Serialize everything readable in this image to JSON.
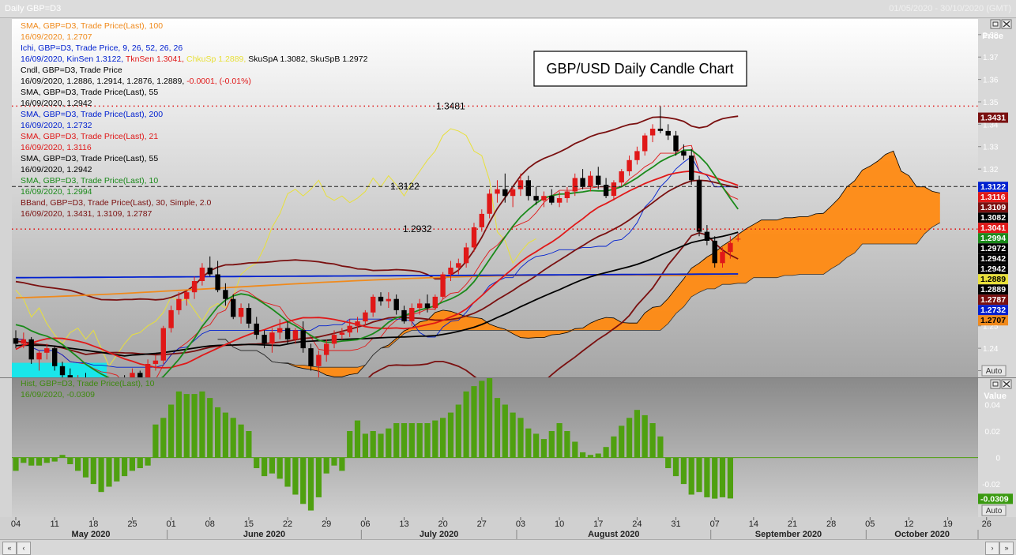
{
  "window": {
    "title": "Daily GBP=D3",
    "date_range": "01/05/2020 - 30/10/2020 (GMT)"
  },
  "chart_title": "GBP/USD Daily Candle Chart",
  "colors": {
    "sma100": "#f08a1c",
    "ichi": "#0020d0",
    "tenkan": "#e01818",
    "chikou": "#e8e03a",
    "candle_text": "#000000",
    "sma55": "#000000",
    "sma200": "#0020d0",
    "sma21": "#e01818",
    "sma10": "#1a8a1a",
    "bband": "#7a1010",
    "cloud_bear": "#ff8a12",
    "cloud_bull": "#19e6ea",
    "hist": "#4fa010",
    "up": "#e01818",
    "down": "#000000"
  },
  "legend": [
    {
      "header": "SMA, GBP=D3, Trade Price(Last),  100",
      "values": "16/09/2020, 1.2707",
      "color": "#f08a1c"
    },
    {
      "header": "Ichi, GBP=D3, Trade Price,  9, 26, 52, 26, 26",
      "values_parts": [
        {
          "t": "16/09/2020, KinSen 1.3122, ",
          "c": "#0020d0"
        },
        {
          "t": "TknSen 1.3041, ",
          "c": "#e01818"
        },
        {
          "t": "ChkuSp 1.2889, ",
          "c": "#e8e03a"
        },
        {
          "t": "SkuSpA 1.3082, SkuSpB 1.2972",
          "c": "#000000"
        }
      ],
      "color": "#0020d0"
    },
    {
      "header": "Cndl, GBP=D3, Trade Price",
      "values_parts": [
        {
          "t": "16/09/2020, 1.2886, 1.2914, 1.2876, 1.2889, ",
          "c": "#000000"
        },
        {
          "t": "-0.0001, (-0.01%)",
          "c": "#e01818"
        }
      ],
      "color": "#000000"
    },
    {
      "header": "SMA, GBP=D3, Trade Price(Last),  55",
      "values": "16/09/2020, 1.2942",
      "color": "#000000"
    },
    {
      "header": "SMA, GBP=D3, Trade Price(Last),  200",
      "values": "16/09/2020, 1.2732",
      "color": "#0020d0"
    },
    {
      "header": "SMA, GBP=D3, Trade Price(Last),  21",
      "values": "16/09/2020, 1.3116",
      "color": "#e01818"
    },
    {
      "header": "SMA, GBP=D3, Trade Price(Last),  55",
      "values": "16/09/2020, 1.2942",
      "color": "#000000"
    },
    {
      "header": "SMA, GBP=D3, Trade Price(Last),  10",
      "values": "16/09/2020, 1.2994",
      "color": "#1a8a1a"
    },
    {
      "header": "BBand, GBP=D3, Trade Price(Last),  30, Simple, 2.0",
      "values": "16/09/2020, 1.3431, 1.3109, 1.2787",
      "color": "#7a1010"
    }
  ],
  "lower_legend": {
    "header": "Hist, GBP=D3, Trade Price(Last), 10",
    "values": "16/09/2020, -0.0309"
  },
  "h_levels": [
    {
      "value": 1.3481,
      "label": "1.3481",
      "style": "red-dotted"
    },
    {
      "value": 1.3122,
      "label": "1.3122",
      "style": "black-dashed"
    },
    {
      "value": 1.2932,
      "label": "1.2932",
      "style": "red-dotted"
    }
  ],
  "price_axis": {
    "title": "Price",
    "ticks": [
      "1.38",
      "1.37",
      "1.36",
      "1.35",
      "1.34",
      "1.33",
      "1.32",
      "1.31",
      "1.30",
      "1.29",
      "1.28",
      "1.27",
      "1.26",
      "1.25",
      "1.24",
      "1.23"
    ],
    "auto_label": "Auto"
  },
  "price_tags": [
    {
      "text": "1.3431",
      "value": 1.3431,
      "bg": "#7a1010",
      "fg": "#ffffff"
    },
    {
      "text": "1.3122",
      "value": 1.3122,
      "bg": "#0020d0",
      "fg": "#ffffff"
    },
    {
      "text": "1.3116",
      "value": 1.3116,
      "bg": "#e01818",
      "fg": "#ffffff"
    },
    {
      "text": "1.3109",
      "value": 1.3109,
      "bg": "#7a1010",
      "fg": "#ffffff"
    },
    {
      "text": "1.3082",
      "value": 1.3082,
      "bg": "#000000",
      "fg": "#ffffff"
    },
    {
      "text": "1.3041",
      "value": 1.3041,
      "bg": "#e01818",
      "fg": "#ffffff"
    },
    {
      "text": "1.2994",
      "value": 1.2994,
      "bg": "#1a8a1a",
      "fg": "#ffffff"
    },
    {
      "text": "1.2972",
      "value": 1.2972,
      "bg": "#000000",
      "fg": "#ffffff"
    },
    {
      "text": "1.2942",
      "value": 1.2942,
      "bg": "#000000",
      "fg": "#ffffff"
    },
    {
      "text": "1.2942",
      "value": 1.2942,
      "bg": "#000000",
      "fg": "#ffffff"
    },
    {
      "text": "1.2889",
      "value": 1.2889,
      "bg": "#e8e03a",
      "fg": "#000000"
    },
    {
      "text": "1.2889",
      "value": 1.2889,
      "bg": "#000000",
      "fg": "#ffffff"
    },
    {
      "text": "1.2787",
      "value": 1.2787,
      "bg": "#7a1010",
      "fg": "#ffffff"
    },
    {
      "text": "1.2732",
      "value": 1.2732,
      "bg": "#0020d0",
      "fg": "#ffffff"
    },
    {
      "text": "1.2707",
      "value": 1.2707,
      "bg": "#f08a1c",
      "fg": "#000000"
    }
  ],
  "lower_axis": {
    "title": "Value",
    "ticks": [
      "0.04",
      "0.02",
      "0",
      "-0.02"
    ],
    "tag": "-0.0309",
    "auto_label": "Auto"
  },
  "date_axis": {
    "days": [
      "04",
      "11",
      "18",
      "25",
      "01",
      "08",
      "15",
      "22",
      "29",
      "06",
      "13",
      "20",
      "27",
      "03",
      "10",
      "17",
      "24",
      "31",
      "07",
      "14",
      "21",
      "28",
      "05",
      "12",
      "19",
      "26"
    ],
    "months": [
      "May 2020",
      "June 2020",
      "July 2020",
      "August 2020",
      "September 2020",
      "October 2020"
    ]
  },
  "chart_data": [
    {
      "type": "candlestick",
      "title": "GBP/USD Daily Candle Chart",
      "x_start": "2020-05-04",
      "y_range": [
        1.227,
        1.387
      ],
      "candles": [
        [
          1.2445,
          1.248,
          1.24,
          1.242
        ],
        [
          1.242,
          1.247,
          1.24,
          1.244
        ],
        [
          1.244,
          1.245,
          1.233,
          1.235
        ],
        [
          1.235,
          1.239,
          1.23,
          1.238
        ],
        [
          1.238,
          1.242,
          1.235,
          1.24
        ],
        [
          1.24,
          1.241,
          1.23,
          1.232
        ],
        [
          1.232,
          1.234,
          1.226,
          1.228
        ],
        [
          1.228,
          1.231,
          1.22,
          1.222
        ],
        [
          1.222,
          1.228,
          1.219,
          1.225
        ],
        [
          1.225,
          1.229,
          1.22,
          1.223
        ],
        [
          1.223,
          1.227,
          1.217,
          1.219
        ],
        [
          1.219,
          1.225,
          1.217,
          1.223
        ],
        [
          1.223,
          1.225,
          1.216,
          1.218
        ],
        [
          1.218,
          1.226,
          1.215,
          1.224
        ],
        [
          1.224,
          1.228,
          1.219,
          1.222
        ],
        [
          1.222,
          1.231,
          1.219,
          1.229
        ],
        [
          1.229,
          1.23,
          1.22,
          1.222
        ],
        [
          1.222,
          1.235,
          1.22,
          1.233
        ],
        [
          1.233,
          1.237,
          1.23,
          1.2345
        ],
        [
          1.2345,
          1.25,
          1.233,
          1.249
        ],
        [
          1.249,
          1.259,
          1.247,
          1.257
        ],
        [
          1.257,
          1.265,
          1.255,
          1.262
        ],
        [
          1.262,
          1.266,
          1.259,
          1.265
        ],
        [
          1.265,
          1.272,
          1.262,
          1.27
        ],
        [
          1.27,
          1.278,
          1.268,
          1.276
        ],
        [
          1.276,
          1.281,
          1.272,
          1.273
        ],
        [
          1.273,
          1.279,
          1.265,
          1.266
        ],
        [
          1.266,
          1.269,
          1.259,
          1.262
        ],
        [
          1.262,
          1.264,
          1.253,
          1.254
        ],
        [
          1.254,
          1.26,
          1.251,
          1.258
        ],
        [
          1.258,
          1.26,
          1.249,
          1.251
        ],
        [
          1.251,
          1.254,
          1.244,
          1.246
        ],
        [
          1.246,
          1.248,
          1.24,
          1.242
        ],
        [
          1.242,
          1.249,
          1.238,
          1.247
        ],
        [
          1.247,
          1.253,
          1.244,
          1.249
        ],
        [
          1.249,
          1.252,
          1.242,
          1.244
        ],
        [
          1.244,
          1.249,
          1.242,
          1.248
        ],
        [
          1.248,
          1.252,
          1.238,
          1.24
        ],
        [
          1.24,
          1.242,
          1.23,
          1.232
        ],
        [
          1.232,
          1.239,
          1.225,
          1.237
        ],
        [
          1.237,
          1.244,
          1.234,
          1.242
        ],
        [
          1.242,
          1.248,
          1.24,
          1.246
        ],
        [
          1.246,
          1.249,
          1.244,
          1.247
        ],
        [
          1.247,
          1.253,
          1.245,
          1.25
        ],
        [
          1.25,
          1.254,
          1.247,
          1.252
        ],
        [
          1.252,
          1.257,
          1.25,
          1.256
        ],
        [
          1.256,
          1.264,
          1.254,
          1.263
        ],
        [
          1.263,
          1.265,
          1.259,
          1.261
        ],
        [
          1.261,
          1.265,
          1.258,
          1.262
        ],
        [
          1.262,
          1.264,
          1.255,
          1.257
        ],
        [
          1.257,
          1.259,
          1.251,
          1.252
        ],
        [
          1.252,
          1.26,
          1.25,
          1.258
        ],
        [
          1.258,
          1.262,
          1.255,
          1.26
        ],
        [
          1.26,
          1.264,
          1.256,
          1.258
        ],
        [
          1.258,
          1.264,
          1.257,
          1.263
        ],
        [
          1.263,
          1.274,
          1.262,
          1.273
        ],
        [
          1.273,
          1.279,
          1.27,
          1.276
        ],
        [
          1.276,
          1.28,
          1.273,
          1.278
        ],
        [
          1.278,
          1.287,
          1.276,
          1.285
        ],
        [
          1.285,
          1.296,
          1.283,
          1.294
        ],
        [
          1.294,
          1.302,
          1.292,
          1.3
        ],
        [
          1.3,
          1.311,
          1.298,
          1.309
        ],
        [
          1.309,
          1.315,
          1.305,
          1.311
        ],
        [
          1.311,
          1.318,
          1.305,
          1.308
        ],
        [
          1.308,
          1.312,
          1.303,
          1.311
        ],
        [
          1.311,
          1.318,
          1.308,
          1.315
        ],
        [
          1.315,
          1.317,
          1.306,
          1.308
        ],
        [
          1.308,
          1.312,
          1.304,
          1.306
        ],
        [
          1.306,
          1.31,
          1.303,
          1.308
        ],
        [
          1.308,
          1.311,
          1.304,
          1.305
        ],
        [
          1.305,
          1.31,
          1.303,
          1.307
        ],
        [
          1.307,
          1.312,
          1.305,
          1.31
        ],
        [
          1.31,
          1.318,
          1.308,
          1.316
        ],
        [
          1.316,
          1.32,
          1.311,
          1.312
        ],
        [
          1.312,
          1.319,
          1.31,
          1.317
        ],
        [
          1.317,
          1.321,
          1.311,
          1.313
        ],
        [
          1.313,
          1.316,
          1.307,
          1.308
        ],
        [
          1.308,
          1.315,
          1.306,
          1.314
        ],
        [
          1.314,
          1.32,
          1.312,
          1.319
        ],
        [
          1.319,
          1.326,
          1.317,
          1.324
        ],
        [
          1.324,
          1.33,
          1.322,
          1.328
        ],
        [
          1.328,
          1.336,
          1.326,
          1.335
        ],
        [
          1.335,
          1.34,
          1.332,
          1.338
        ],
        [
          1.338,
          1.3481,
          1.336,
          1.337
        ],
        [
          1.337,
          1.34,
          1.333,
          1.335
        ],
        [
          1.335,
          1.337,
          1.326,
          1.328
        ],
        [
          1.328,
          1.331,
          1.324,
          1.326
        ],
        [
          1.326,
          1.329,
          1.313,
          1.315
        ],
        [
          1.315,
          1.317,
          1.29,
          1.292
        ],
        [
          1.292,
          1.295,
          1.286,
          1.288
        ],
        [
          1.288,
          1.29,
          1.276,
          1.278
        ],
        [
          1.278,
          1.285,
          1.276,
          1.283
        ],
        [
          1.283,
          1.29,
          1.28,
          1.287
        ],
        [
          1.2886,
          1.2914,
          1.2876,
          1.2889
        ]
      ],
      "overlays": [
        {
          "name": "SMA 100",
          "color": "#f08a1c"
        },
        {
          "name": "SMA 200",
          "color": "#0020d0"
        },
        {
          "name": "SMA 55",
          "color": "#000000"
        },
        {
          "name": "SMA 21",
          "color": "#e01818"
        },
        {
          "name": "SMA 10",
          "color": "#1a8a1a"
        },
        {
          "name": "BBand 30, 2.0",
          "color": "#7a1010"
        },
        {
          "name": "Ichimoku cloud",
          "color": "#ff8a12"
        }
      ]
    },
    {
      "type": "bar",
      "title": "Histogram",
      "ylim": [
        -0.045,
        0.06
      ],
      "values": [
        -0.01,
        -0.004,
        -0.006,
        -0.006,
        -0.004,
        -0.003,
        0.002,
        -0.005,
        -0.01,
        -0.015,
        -0.02,
        -0.026,
        -0.022,
        -0.018,
        -0.014,
        -0.01,
        -0.008,
        -0.006,
        0.025,
        0.03,
        0.04,
        0.05,
        0.048,
        0.048,
        0.05,
        0.045,
        0.038,
        0.034,
        0.03,
        0.025,
        0.02,
        -0.008,
        -0.014,
        -0.012,
        -0.016,
        -0.022,
        -0.028,
        -0.035,
        -0.04,
        -0.03,
        -0.012,
        -0.006,
        -0.01,
        0.02,
        0.028,
        0.018,
        0.02,
        0.018,
        0.022,
        0.026,
        0.026,
        0.026,
        0.026,
        0.026,
        0.028,
        0.03,
        0.034,
        0.04,
        0.05,
        0.054,
        0.058,
        0.06,
        0.045,
        0.04,
        0.034,
        0.03,
        0.022,
        0.018,
        0.014,
        0.02,
        0.026,
        0.02,
        0.012,
        0.004,
        0.002,
        0.003,
        0.008,
        0.016,
        0.024,
        0.03,
        0.036,
        0.032,
        0.026,
        0.016,
        -0.008,
        -0.014,
        -0.02,
        -0.028,
        -0.026,
        -0.03,
        -0.031,
        -0.03,
        -0.0309
      ]
    }
  ]
}
